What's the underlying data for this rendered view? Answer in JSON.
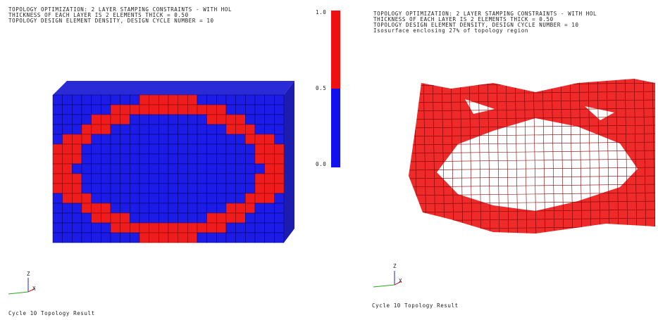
{
  "left_panel": {
    "header": [
      "TOPOLOGY OPTIMIZATION: 2 LAYER STAMPING CONSTRAINTS - WITH HOL",
      "THICKNESS OF EACH LAYER IS 2 ELEMENTS THICK = 0.50",
      "TOPOLOGY DESIGN ELEMENT DENSITY, DESIGN CYCLE NUMBER =      10"
    ],
    "color_bar": {
      "labels": [
        "1.0",
        "0.5",
        "0.0"
      ]
    },
    "axes": {
      "z": "Z",
      "x": "X"
    },
    "caption": "Cycle 10 Topology Result"
  },
  "right_panel": {
    "header": [
      "TOPOLOGY OPTIMIZATION: 2 LAYER STAMPING CONSTRAINTS - WITH HOL",
      "THICKNESS OF EACH LAYER IS 2 ELEMENTS THICK = 0.50",
      "TOPOLOGY DESIGN ELEMENT DENSITY, DESIGN CYCLE NUMBER =      10",
      "Isosurface enclosing 27% of topology region"
    ],
    "axes": {
      "z": "Z",
      "x": "X"
    },
    "caption": "Cycle 10 Topology Result"
  }
}
